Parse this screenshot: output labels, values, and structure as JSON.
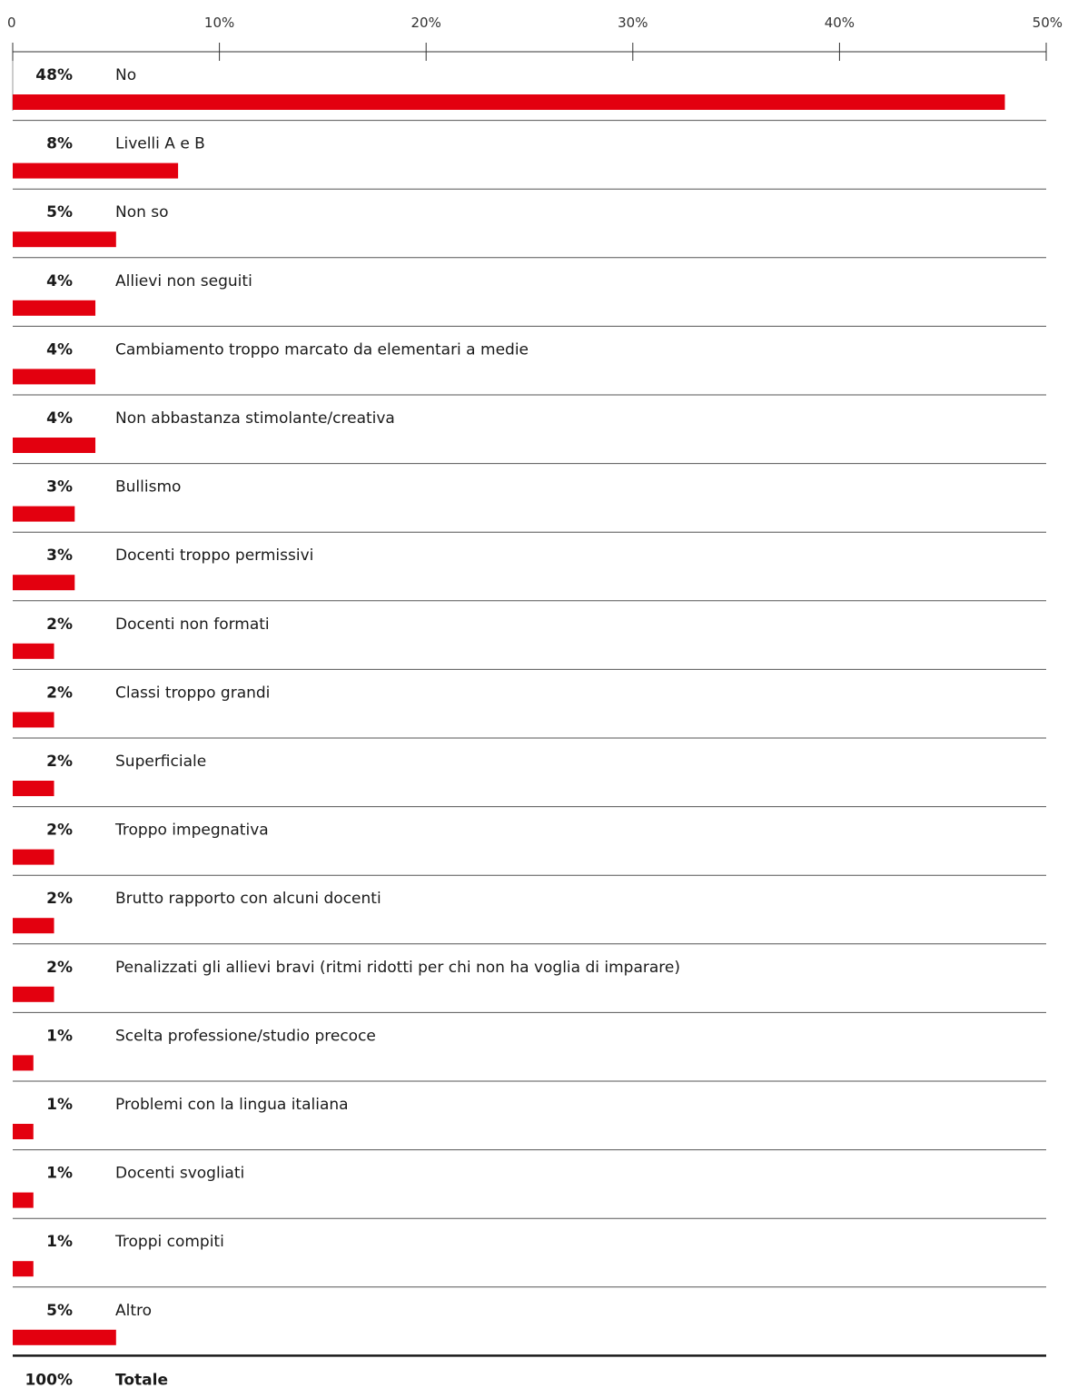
{
  "chart_data": {
    "type": "bar",
    "orientation": "horizontal",
    "xlim": [
      0,
      50
    ],
    "ticks": [
      "0",
      "10%",
      "20%",
      "30%",
      "40%",
      "50%"
    ],
    "tick_values": [
      0,
      10,
      20,
      30,
      40,
      50
    ],
    "bar_color": "#e3000f",
    "categories": [
      "No",
      "Livelli A e B",
      "Non so",
      "Allievi non seguiti",
      "Cambiamento troppo marcato da elementari a medie",
      "Non abbastanza stimolante/creativa",
      "Bullismo",
      "Docenti troppo permissivi",
      "Docenti non formati",
      "Classi troppo grandi",
      "Superficiale",
      "Troppo impegnativa",
      "Brutto rapporto con alcuni docenti",
      "Penalizzati gli allievi bravi (ritmi ridotti per chi non ha voglia di imparare)",
      "Scelta professione/studio precoce",
      "Problemi con la lingua italiana",
      "Docenti svogliati",
      "Troppi compiti",
      "Altro"
    ],
    "values": [
      48,
      8,
      5,
      4,
      4,
      4,
      3,
      3,
      2,
      2,
      2,
      2,
      2,
      2,
      1,
      1,
      1,
      1,
      5
    ],
    "value_labels": [
      "48%",
      "8%",
      "5%",
      "4%",
      "4%",
      "4%",
      "3%",
      "3%",
      "2%",
      "2%",
      "2%",
      "2%",
      "2%",
      "2%",
      "1%",
      "1%",
      "1%",
      "1%",
      "5%"
    ],
    "total": {
      "value_label": "100%",
      "label": "Totale"
    }
  }
}
